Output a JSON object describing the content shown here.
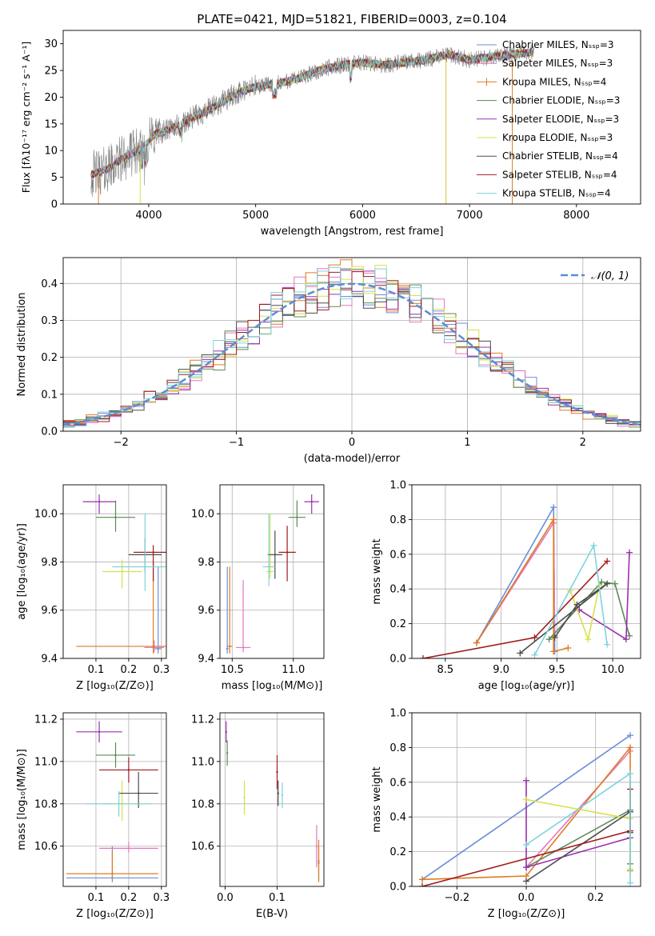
{
  "figure_title": "PLATE=0421, MJD=51821, FIBERID=0003, z=0.104",
  "chart_data": [
    {
      "id": "spectrum",
      "type": "line",
      "title": "PLATE=0421, MJD=51821, FIBERID=0003, z=0.104",
      "xlabel": "wavelength [Angstrom, rest frame]",
      "ylabel": "Flux [fλ10⁻¹⁷ erg cm⁻² s⁻¹ A⁻¹]",
      "xlim": [
        3200,
        8600
      ],
      "ylim": [
        0,
        32.5
      ],
      "xticks": [
        4000,
        5000,
        6000,
        7000,
        8000
      ],
      "yticks": [
        0,
        5,
        10,
        15,
        20,
        25,
        30
      ],
      "grid": false,
      "legend_position": "top-right",
      "series": [
        {
          "name": "Chabrier MILES, Nₛₛₚ=3",
          "color": "#6a8fd8"
        },
        {
          "name": "Salpeter MILES, Nₛₛₚ=3",
          "color": "#e377c2"
        },
        {
          "name": "Kroupa MILES, Nₛₛₚ=4",
          "color": "#e07b22"
        },
        {
          "name": "Chabrier ELODIE, Nₛₛₚ=3",
          "color": "#5d8a55"
        },
        {
          "name": "Salpeter ELODIE, Nₛₛₚ=3",
          "color": "#9b2fae"
        },
        {
          "name": "Kroupa ELODIE, Nₛₛₚ=3",
          "color": "#d8e04a"
        },
        {
          "name": "Chabrier STELIB, Nₛₛₚ=4",
          "color": "#4d4d4d"
        },
        {
          "name": "Salpeter STELIB, Nₛₛₚ=4",
          "color": "#a01c1c"
        },
        {
          "name": "Kroupa STELIB, Nₛₛₚ=4",
          "color": "#7fd3dc"
        }
      ],
      "continuum": [
        [
          3450,
          5.5
        ],
        [
          3550,
          6
        ],
        [
          3650,
          7
        ],
        [
          3750,
          8.5
        ],
        [
          3850,
          9.5
        ],
        [
          3950,
          10.5
        ],
        [
          4050,
          13
        ],
        [
          4200,
          14
        ],
        [
          4400,
          16
        ],
        [
          4600,
          18
        ],
        [
          4800,
          20.5
        ],
        [
          5000,
          22
        ],
        [
          5200,
          22.5
        ],
        [
          5400,
          23.5
        ],
        [
          5600,
          25
        ],
        [
          5800,
          26
        ],
        [
          6000,
          26.5
        ],
        [
          6200,
          26
        ],
        [
          6400,
          26.5
        ],
        [
          6600,
          27
        ],
        [
          6800,
          28
        ],
        [
          7000,
          27
        ],
        [
          7200,
          27.5
        ],
        [
          7400,
          28
        ],
        [
          7600,
          28.5
        ]
      ]
    },
    {
      "id": "residuals",
      "type": "histogram",
      "xlabel": "(data-model)/error",
      "ylabel": "Normed distribution",
      "xlim": [
        -2.5,
        2.5
      ],
      "ylim": [
        0,
        0.47
      ],
      "xticks": [
        -2,
        -1,
        0,
        1,
        2
      ],
      "yticks": [
        0.0,
        0.1,
        0.2,
        0.3,
        0.4
      ],
      "grid": true,
      "legend": [
        "𝒩(0, 1)"
      ],
      "legend_position": "top-right",
      "gaussian_color": "#5b8dd6"
    },
    {
      "id": "age_vs_Z",
      "type": "errorbar",
      "xlabel": "Z [log₁₀(Z/Z⊙)]",
      "ylabel": "age  [log₁₀(age/yr)]",
      "xlim": [
        0.0,
        0.315
      ],
      "ylim": [
        9.4,
        10.12
      ],
      "xticks": [
        0.1,
        0.2,
        0.3
      ],
      "yticks": [
        9.4,
        9.6,
        9.8,
        10.0
      ],
      "grid": true,
      "points": [
        {
          "x": 0.29,
          "xerr": 0.01,
          "y": 9.44,
          "yerr": [
            0.02,
            0.34
          ],
          "color": "#6a8fd8"
        },
        {
          "x": 0.278,
          "xerr": 0.03,
          "y": 9.445,
          "yerr": [
            0.02,
            0.03
          ],
          "color": "#e377c2"
        },
        {
          "x": 0.275,
          "xerr": 0.235,
          "y": 9.45,
          "yerr": [
            0.03,
            0.35
          ],
          "color": "#e07b22"
        },
        {
          "x": 0.16,
          "xerr": 0.06,
          "y": 9.985,
          "yerr": [
            0.06,
            0.07
          ],
          "color": "#5d8a55"
        },
        {
          "x": 0.11,
          "xerr": 0.05,
          "y": 10.05,
          "yerr": [
            0.05,
            0.03
          ],
          "color": "#9b2fae"
        },
        {
          "x": 0.18,
          "xerr": 0.06,
          "y": 9.76,
          "yerr": [
            0.07,
            0.05
          ],
          "color": "#d8e04a"
        },
        {
          "x": 0.25,
          "xerr": 0.05,
          "y": 9.83,
          "yerr": [
            0.07,
            0.07
          ],
          "color": "#4d4d4d"
        },
        {
          "x": 0.275,
          "xerr": 0.06,
          "y": 9.84,
          "yerr": [
            0.12,
            0.03
          ],
          "color": "#a01c1c"
        },
        {
          "x": 0.25,
          "xerr": 0.1,
          "y": 9.78,
          "yerr": [
            0.1,
            0.22
          ],
          "color": "#7fd3dc"
        }
      ]
    },
    {
      "id": "age_vs_mass",
      "type": "errorbar",
      "xlabel": "mass [log₁₀(M/M⊙)]",
      "ylabel": "",
      "xlim": [
        10.4,
        11.25
      ],
      "ylim": [
        9.4,
        10.12
      ],
      "xticks": [
        10.5,
        11.0
      ],
      "yticks": [
        9.4,
        9.6,
        9.8,
        10.0
      ],
      "grid": true,
      "points": [
        {
          "x": 10.46,
          "xerr": 0.01,
          "y": 9.44,
          "yerr": [
            0.02,
            0.34
          ],
          "color": "#6a8fd8"
        },
        {
          "x": 10.59,
          "xerr": 0.06,
          "y": 9.445,
          "yerr": [
            0.02,
            0.28
          ],
          "color": "#e377c2"
        },
        {
          "x": 10.48,
          "xerr": 0.02,
          "y": 9.45,
          "yerr": [
            0.03,
            0.33
          ],
          "color": "#e07b22"
        },
        {
          "x": 11.03,
          "xerr": 0.07,
          "y": 9.985,
          "yerr": [
            0.04,
            0.07
          ],
          "color": "#5d8a55"
        },
        {
          "x": 11.15,
          "xerr": 0.06,
          "y": 10.05,
          "yerr": [
            0.05,
            0.03
          ],
          "color": "#9b2fae"
        },
        {
          "x": 10.81,
          "xerr": 0.03,
          "y": 9.76,
          "yerr": [
            0.03,
            0.24
          ],
          "color": "#d8e04a"
        },
        {
          "x": 10.85,
          "xerr": 0.06,
          "y": 9.83,
          "yerr": [
            0.1,
            0.1
          ],
          "color": "#4d4d4d"
        },
        {
          "x": 10.95,
          "xerr": 0.07,
          "y": 9.84,
          "yerr": [
            0.12,
            0.11
          ],
          "color": "#a01c1c"
        },
        {
          "x": 10.8,
          "xerr": 0.05,
          "y": 9.78,
          "yerr": [
            0.08,
            0.22
          ],
          "color": "#7fd3dc"
        }
      ]
    },
    {
      "id": "massweight_vs_age",
      "type": "line",
      "xlabel": "age  [log₁₀(age/yr)]",
      "ylabel": "mass weight",
      "xlim": [
        8.2,
        10.25
      ],
      "ylim": [
        0.0,
        1.0
      ],
      "xticks": [
        8.5,
        9.0,
        9.5,
        10.0
      ],
      "yticks": [
        0.0,
        0.2,
        0.4,
        0.6,
        0.8,
        1.0
      ],
      "grid": true,
      "series": [
        {
          "color": "#6a8fd8",
          "points": [
            [
              8.78,
              0.09
            ],
            [
              9.47,
              0.87
            ],
            [
              9.48,
              0.04
            ]
          ]
        },
        {
          "color": "#e377c2",
          "points": [
            [
              8.78,
              0.09
            ],
            [
              9.47,
              0.78
            ],
            [
              9.48,
              0.13
            ]
          ]
        },
        {
          "color": "#e07b22",
          "points": [
            [
              8.78,
              0.09
            ],
            [
              9.47,
              0.8
            ],
            [
              9.47,
              0.04
            ],
            [
              9.6,
              0.06
            ]
          ]
        },
        {
          "color": "#5d8a55",
          "points": [
            [
              9.43,
              0.11
            ],
            [
              9.9,
              0.44
            ],
            [
              10.02,
              0.43
            ],
            [
              10.15,
              0.13
            ]
          ]
        },
        {
          "color": "#9b2fae",
          "points": [
            [
              9.7,
              0.28
            ],
            [
              10.12,
              0.11
            ],
            [
              10.15,
              0.61
            ]
          ]
        },
        {
          "color": "#d8e04a",
          "points": [
            [
              9.62,
              0.39
            ],
            [
              9.78,
              0.11
            ],
            [
              9.88,
              0.42
            ]
          ]
        },
        {
          "color": "#4d4d4d",
          "points": [
            [
              9.17,
              0.03
            ],
            [
              9.95,
              0.43
            ],
            [
              9.68,
              0.31
            ],
            [
              9.48,
              0.12
            ]
          ]
        },
        {
          "color": "#a01c1c",
          "points": [
            [
              8.3,
              0.0
            ],
            [
              9.3,
              0.12
            ],
            [
              9.95,
              0.56
            ]
          ]
        },
        {
          "color": "#7fd3dc",
          "points": [
            [
              9.3,
              0.02
            ],
            [
              9.83,
              0.65
            ],
            [
              9.95,
              0.08
            ]
          ]
        }
      ]
    },
    {
      "id": "mass_vs_Z",
      "type": "errorbar",
      "xlabel": "Z [log₁₀(Z/Z⊙)]",
      "ylabel": "mass [log₁₀(M/M⊙)]",
      "xlim": [
        0.0,
        0.315
      ],
      "ylim": [
        10.41,
        11.23
      ],
      "xticks": [
        0.1,
        0.2,
        0.3
      ],
      "yticks": [
        10.6,
        10.8,
        11.0,
        11.2
      ],
      "grid": true,
      "points": [
        {
          "x": 0.15,
          "xerr": 0.14,
          "y": 10.45,
          "yerr": [
            0.02,
            0.15
          ],
          "color": "#6a8fd8"
        },
        {
          "x": 0.2,
          "xerr": 0.09,
          "y": 10.59,
          "yerr": [
            0.02,
            0.03
          ],
          "color": "#e377c2"
        },
        {
          "x": 0.15,
          "xerr": 0.14,
          "y": 10.47,
          "yerr": [
            0.02,
            0.11
          ],
          "color": "#e07b22"
        },
        {
          "x": 0.16,
          "xerr": 0.06,
          "y": 11.03,
          "yerr": [
            0.06,
            0.06
          ],
          "color": "#5d8a55"
        },
        {
          "x": 0.11,
          "xerr": 0.07,
          "y": 11.14,
          "yerr": [
            0.05,
            0.05
          ],
          "color": "#9b2fae"
        },
        {
          "x": 0.18,
          "xerr": 0.06,
          "y": 10.8,
          "yerr": [
            0.08,
            0.11
          ],
          "color": "#d8e04a"
        },
        {
          "x": 0.23,
          "xerr": 0.06,
          "y": 10.85,
          "yerr": [
            0.07,
            0.1
          ],
          "color": "#4d4d4d"
        },
        {
          "x": 0.2,
          "xerr": 0.09,
          "y": 10.96,
          "yerr": [
            0.06,
            0.06
          ],
          "color": "#a01c1c"
        },
        {
          "x": 0.17,
          "xerr": 0.1,
          "y": 10.8,
          "yerr": [
            0.06,
            0.06
          ],
          "color": "#7fd3dc"
        }
      ]
    },
    {
      "id": "mass_vs_EBV",
      "type": "errorbar",
      "xlabel": "E(B-V)",
      "ylabel": "",
      "xlim": [
        -0.01,
        0.19
      ],
      "ylim": [
        10.41,
        11.23
      ],
      "xticks": [
        0.0,
        0.1
      ],
      "yticks": [
        10.6,
        10.8,
        11.0,
        11.2
      ],
      "grid": true,
      "points": [
        {
          "x": 0.18,
          "y": 10.52,
          "yerr": [
            0.08,
            0.08
          ],
          "color": "#6a8fd8"
        },
        {
          "x": 0.176,
          "y": 10.6,
          "yerr": [
            0.1,
            0.1
          ],
          "color": "#e377c2"
        },
        {
          "x": 0.18,
          "y": 10.53,
          "yerr": [
            0.1,
            0.1
          ],
          "color": "#e07b22"
        },
        {
          "x": 0.004,
          "y": 11.04,
          "yerr": [
            0.06,
            0.06
          ],
          "color": "#5d8a55"
        },
        {
          "x": 0.002,
          "y": 11.14,
          "yerr": [
            0.05,
            0.05
          ],
          "color": "#9b2fae"
        },
        {
          "x": 0.037,
          "y": 10.83,
          "yerr": [
            0.08,
            0.08
          ],
          "color": "#d8e04a"
        },
        {
          "x": 0.102,
          "y": 10.85,
          "yerr": [
            0.06,
            0.06
          ],
          "color": "#4d4d4d"
        },
        {
          "x": 0.1,
          "y": 10.95,
          "yerr": [
            0.08,
            0.08
          ],
          "color": "#a01c1c"
        },
        {
          "x": 0.11,
          "y": 10.84,
          "yerr": [
            0.06,
            0.06
          ],
          "color": "#7fd3dc"
        }
      ]
    },
    {
      "id": "massweight_vs_Z",
      "type": "line",
      "xlabel": "Z [log₁₀(Z/Z⊙)]",
      "ylabel": "mass weight",
      "xlim": [
        -0.33,
        0.33
      ],
      "ylim": [
        0.0,
        1.0
      ],
      "xticks": [
        -0.2,
        0.0,
        0.2
      ],
      "yticks": [
        0.0,
        0.2,
        0.4,
        0.6,
        0.8,
        1.0
      ],
      "grid": true,
      "series": [
        {
          "color": "#6a8fd8",
          "points": [
            [
              -0.3,
              0.04
            ],
            [
              0.3,
              0.87
            ]
          ]
        },
        {
          "color": "#e377c2",
          "points": [
            [
              0.0,
              0.11
            ],
            [
              0.3,
              0.78
            ]
          ]
        },
        {
          "color": "#e07b22",
          "points": [
            [
              -0.3,
              0.04
            ],
            [
              0.0,
              0.06
            ],
            [
              0.3,
              0.8
            ],
            [
              0.3,
              0.09
            ]
          ]
        },
        {
          "color": "#5d8a55",
          "points": [
            [
              0.0,
              0.11
            ],
            [
              0.3,
              0.44
            ],
            [
              0.3,
              0.13
            ]
          ]
        },
        {
          "color": "#9b2fae",
          "points": [
            [
              0.0,
              0.61
            ],
            [
              0.0,
              0.11
            ],
            [
              0.3,
              0.28
            ]
          ]
        },
        {
          "color": "#d8e04a",
          "points": [
            [
              0.0,
              0.5
            ],
            [
              0.3,
              0.39
            ],
            [
              0.3,
              0.1
            ]
          ]
        },
        {
          "color": "#4d4d4d",
          "points": [
            [
              0.0,
              0.03
            ],
            [
              0.3,
              0.43
            ],
            [
              0.3,
              0.31
            ]
          ]
        },
        {
          "color": "#a01c1c",
          "points": [
            [
              -0.3,
              0.0
            ],
            [
              0.3,
              0.32
            ],
            [
              0.3,
              0.56
            ]
          ]
        },
        {
          "color": "#7fd3dc",
          "points": [
            [
              0.0,
              0.24
            ],
            [
              0.3,
              0.65
            ],
            [
              0.3,
              0.02
            ]
          ]
        }
      ]
    }
  ]
}
